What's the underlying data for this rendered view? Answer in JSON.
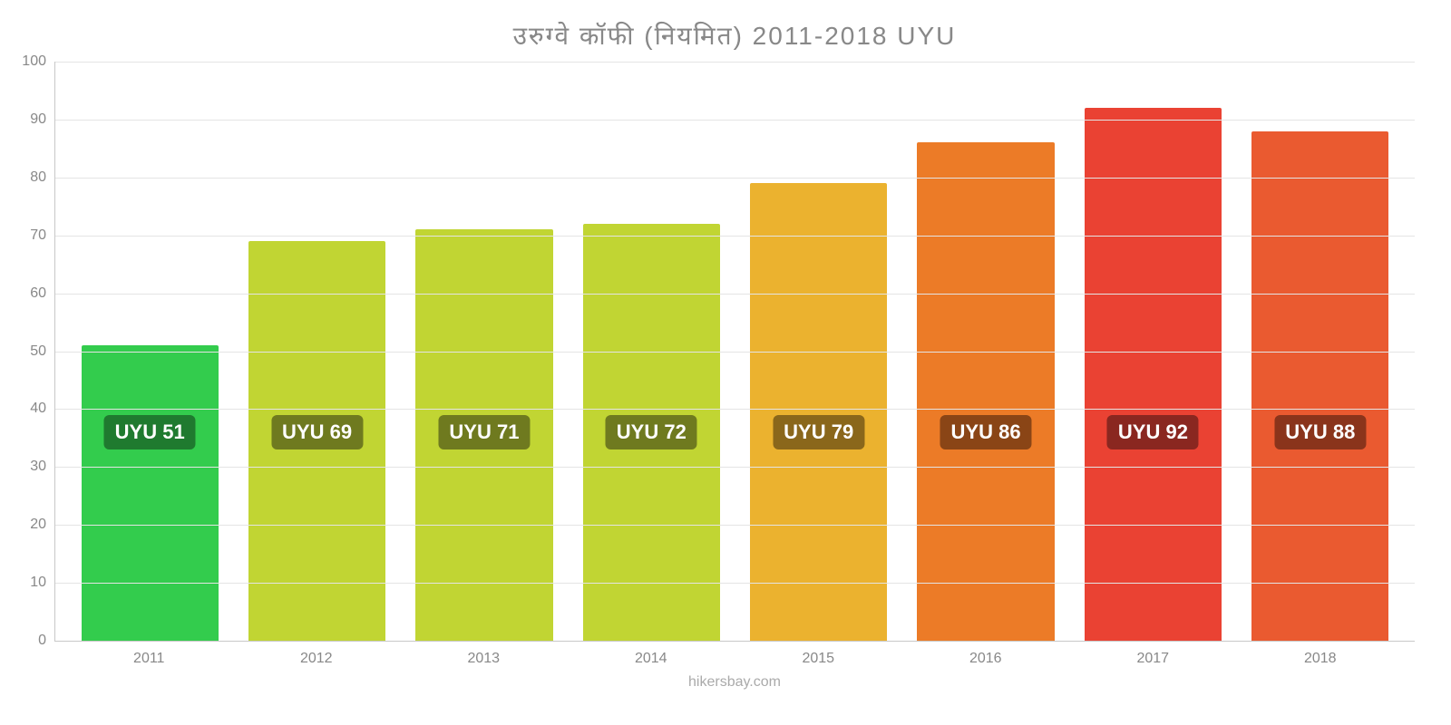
{
  "chart": {
    "type": "bar",
    "title": "उरुग्वे    कॉफी    (नियमित) 2011-2018 UYU",
    "title_color": "#888888",
    "title_fontsize": 28,
    "credit": "hikersbay.com",
    "credit_color": "#aaaaaa",
    "background_color": "#ffffff",
    "grid_color": "#e4e4e4",
    "axis_color": "#c8c8c8",
    "axis_label_color": "#888888",
    "axis_label_fontsize": 16,
    "ylim": [
      0,
      100
    ],
    "ytick_step": 10,
    "yticks": [
      0,
      10,
      20,
      30,
      40,
      50,
      60,
      70,
      80,
      90,
      100
    ],
    "categories": [
      "2011",
      "2012",
      "2013",
      "2014",
      "2015",
      "2016",
      "2017",
      "2018"
    ],
    "values": [
      51,
      69,
      71,
      72,
      79,
      86,
      92,
      88
    ],
    "value_labels": [
      "UYU 51",
      "UYU 69",
      "UYU 71",
      "UYU 72",
      "UYU 79",
      "UYU 86",
      "UYU 92",
      "UYU 88"
    ],
    "bar_colors": [
      "#33cc4d",
      "#c1d533",
      "#c1d533",
      "#c1d533",
      "#ebb22f",
      "#ec7b27",
      "#ea4233",
      "#ea5a30"
    ],
    "badge_colors": [
      "#1f7a2f",
      "#6f7a1f",
      "#6f7a1f",
      "#6f7a1f",
      "#8a671b",
      "#8a4516",
      "#8a2720",
      "#8a341b"
    ],
    "badge_fontsize": 22,
    "badge_text_color": "#ffffff",
    "bar_width_pct": 82,
    "badge_offset_from_bottom_pct": 36
  }
}
